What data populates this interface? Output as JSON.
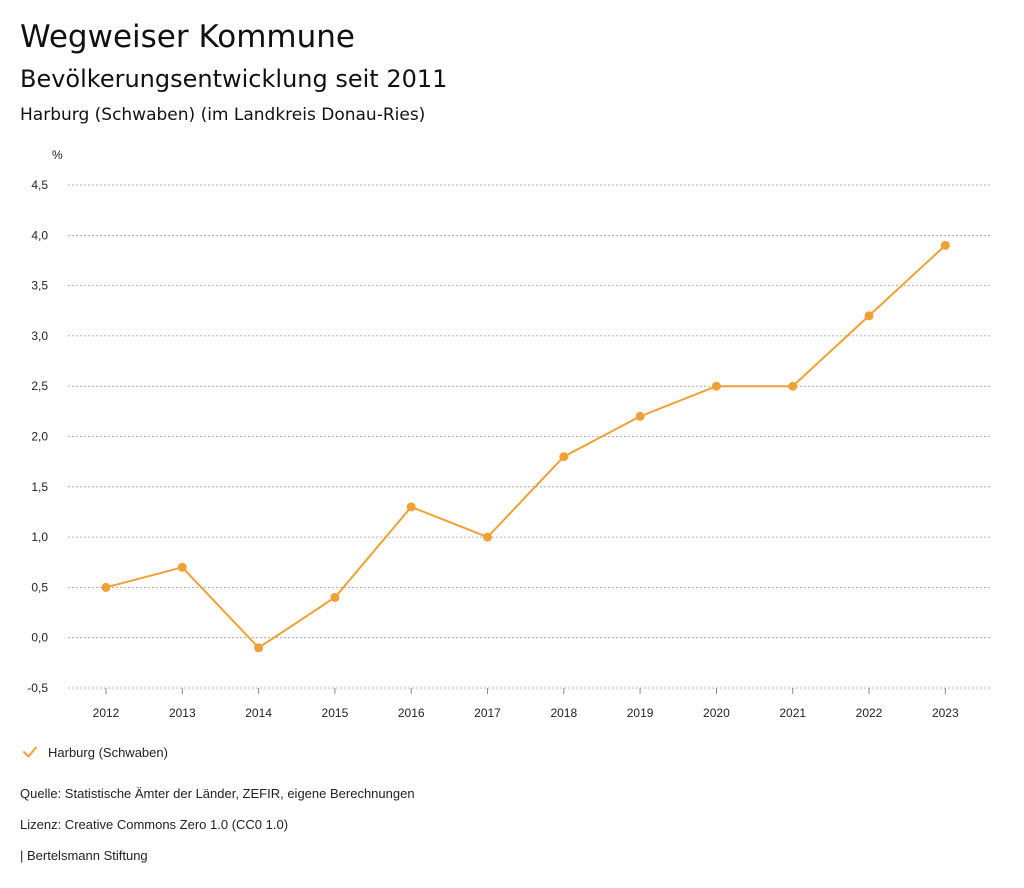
{
  "header": {
    "title": "Wegweiser Kommune",
    "subtitle": "Bevölkerungsentwicklung seit 2011",
    "region": "Harburg (Schwaben) (im Landkreis Donau-Ries)"
  },
  "colors": {
    "series": "#F0A035",
    "grid": "#9a9a9a",
    "axis": "#888888",
    "text": "#222222"
  },
  "chart_data": {
    "type": "line",
    "title": "Bevölkerungsentwicklung seit 2011",
    "ylabel": "%",
    "xlabel": "",
    "ylim": [
      -0.5,
      4.5
    ],
    "yticks": [
      -0.5,
      0.0,
      0.5,
      1.0,
      1.5,
      2.0,
      2.5,
      3.0,
      3.5,
      4.0,
      4.5
    ],
    "ytick_labels": [
      "-0,5",
      "0,0",
      "0,5",
      "1,0",
      "1,5",
      "2,0",
      "2,5",
      "3,0",
      "3,5",
      "4,0",
      "4,5"
    ],
    "categories": [
      "2012",
      "2013",
      "2014",
      "2015",
      "2016",
      "2017",
      "2018",
      "2019",
      "2020",
      "2021",
      "2022",
      "2023"
    ],
    "grid": true,
    "legend_position": "bottom-left",
    "series": [
      {
        "name": "Harburg (Schwaben)",
        "values": [
          0.5,
          0.7,
          -0.1,
          0.4,
          1.3,
          1.0,
          1.8,
          2.2,
          2.5,
          2.5,
          3.2,
          3.9
        ]
      }
    ]
  },
  "legend": {
    "items": [
      {
        "label": "Harburg (Schwaben)",
        "icon": "checkmark-icon"
      }
    ]
  },
  "footer": {
    "source": "Quelle: Statistische Ämter der Länder, ZEFIR, eigene Berechnungen",
    "license": "Lizenz: Creative Commons Zero 1.0 (CC0 1.0)",
    "publisher": "| Bertelsmann Stiftung"
  }
}
